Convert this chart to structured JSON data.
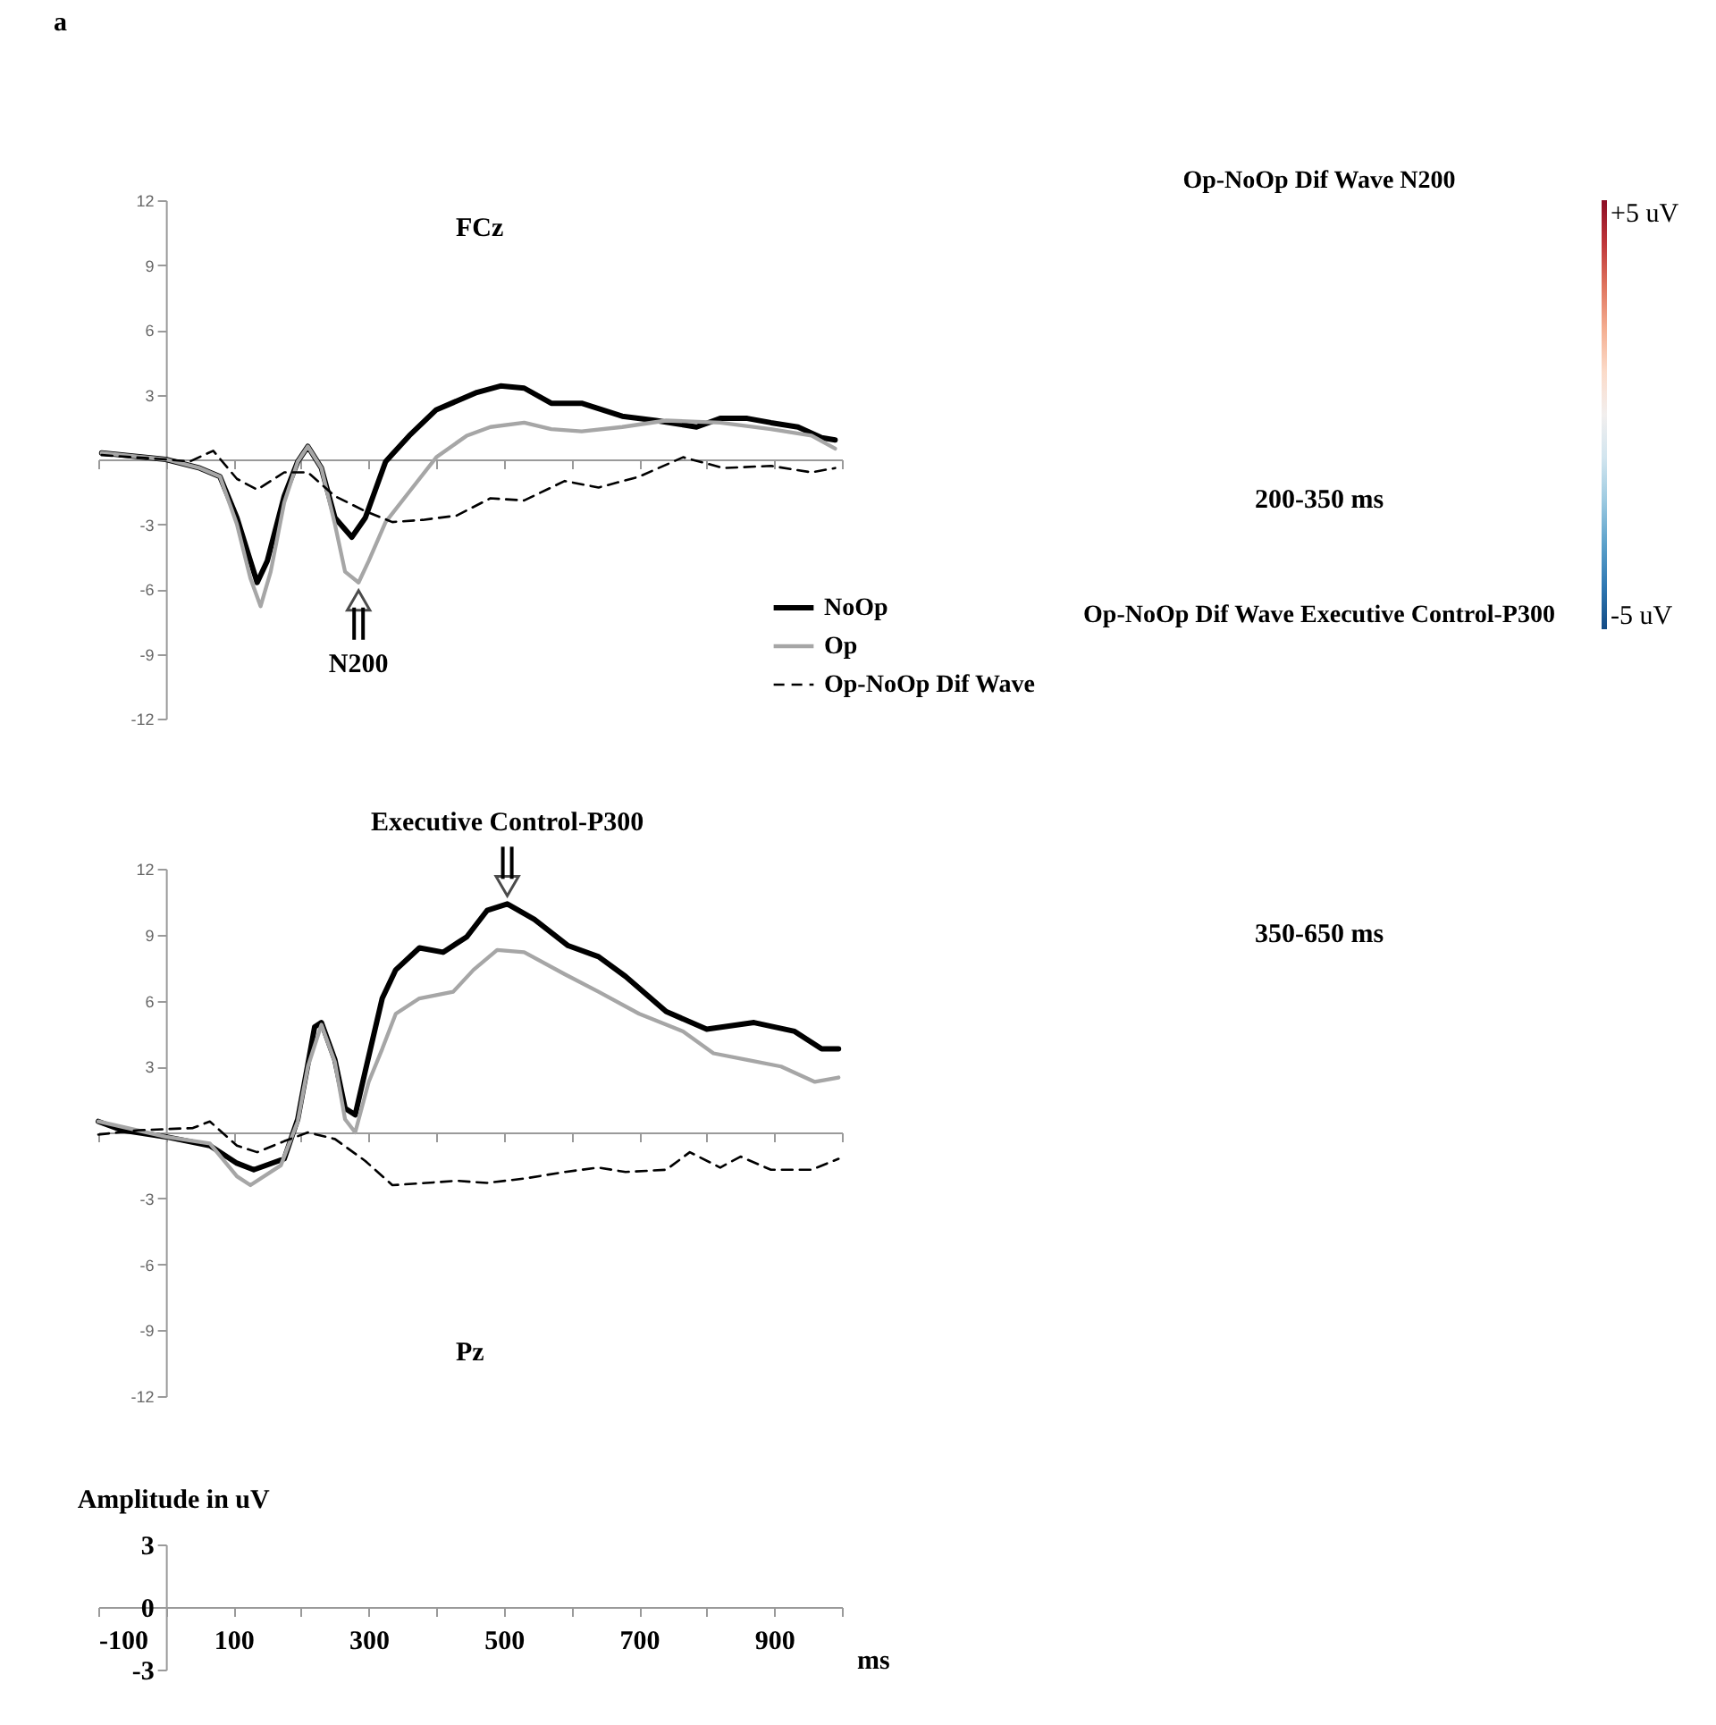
{
  "chart_data": [
    {
      "type": "line",
      "xlim": [
        -100,
        1000
      ],
      "xticks": [
        {
          "value": -100,
          "label": null
        },
        {
          "value": 0,
          "label": null
        },
        {
          "value": 100,
          "label": null
        },
        {
          "value": 200,
          "label": null
        },
        {
          "value": 300,
          "label": null
        },
        {
          "value": 400,
          "label": null
        },
        {
          "value": 500,
          "label": null
        },
        {
          "value": 600,
          "label": null
        },
        {
          "value": 700,
          "label": null
        },
        {
          "value": 800,
          "label": null
        },
        {
          "value": 900,
          "label": null
        },
        {
          "value": 1000,
          "label": null
        }
      ],
      "ylim": [
        -12,
        12
      ],
      "yticks": [
        -12,
        -9,
        -6,
        -3,
        3,
        6,
        9,
        12
      ],
      "tick_labels": "y",
      "legend": "bottom right",
      "grid": false,
      "annotations": [
        "a",
        "FCz",
        {
          "text": "N200",
          "x": 285,
          "y": -5.7
        }
      ],
      "series": [
        {
          "name": "NoOp",
          "color": "#000000",
          "line_style": "solid",
          "x": [
            -95,
            0,
            50,
            80,
            105,
            125,
            135,
            150,
            175,
            195,
            210,
            230,
            250,
            275,
            295,
            325,
            360,
            400,
            460,
            495,
            530,
            570,
            615,
            675,
            725,
            785,
            820,
            860,
            895,
            935,
            970,
            990
          ],
          "values": [
            0.3,
            0,
            -0.4,
            -0.8,
            -2.7,
            -4.7,
            -5.7,
            -4.7,
            -1.7,
            -0.1,
            0.6,
            -0.4,
            -2.7,
            -3.6,
            -2.7,
            -0.1,
            1.1,
            2.3,
            3.1,
            3.4,
            3.3,
            2.6,
            2.6,
            2.0,
            1.8,
            1.5,
            1.9,
            1.9,
            1.7,
            1.5,
            1.0,
            0.9
          ]
        },
        {
          "name": "Op",
          "color": "#a6a6a6",
          "line_style": "solid",
          "x": [
            -95,
            0,
            50,
            80,
            105,
            125,
            140,
            155,
            175,
            195,
            210,
            230,
            250,
            265,
            285,
            300,
            325,
            360,
            400,
            445,
            480,
            530,
            570,
            615,
            675,
            740,
            820,
            895,
            955,
            990
          ],
          "values": [
            0.3,
            0,
            -0.4,
            -0.8,
            -3.0,
            -5.5,
            -6.8,
            -5.2,
            -2.0,
            -0.1,
            0.6,
            -0.4,
            -3.0,
            -5.2,
            -5.7,
            -4.7,
            -2.9,
            -1.5,
            0.1,
            1.1,
            1.5,
            1.7,
            1.4,
            1.3,
            1.5,
            1.8,
            1.7,
            1.4,
            1.1,
            0.5
          ]
        },
        {
          "name": "Op-NoOp Dif Wave",
          "color": "#000000",
          "line_style": "dashed",
          "x": [
            -95,
            0,
            35,
            70,
            105,
            135,
            175,
            210,
            250,
            295,
            335,
            380,
            430,
            480,
            530,
            590,
            640,
            700,
            765,
            825,
            895,
            955,
            990
          ],
          "values": [
            0.2,
            0,
            -0.1,
            0.4,
            -0.9,
            -1.4,
            -0.6,
            -0.6,
            -1.7,
            -2.4,
            -2.9,
            -2.8,
            -2.6,
            -1.8,
            -1.9,
            -1.0,
            -1.3,
            -0.8,
            0.1,
            -0.4,
            -0.3,
            -0.6,
            -0.4
          ]
        }
      ]
    },
    {
      "type": "line",
      "xlim": [
        -100,
        1000
      ],
      "xticks": [
        {
          "value": -100,
          "label": null
        },
        {
          "value": 0,
          "label": null
        },
        {
          "value": 100,
          "label": null
        },
        {
          "value": 200,
          "label": null
        },
        {
          "value": 300,
          "label": null
        },
        {
          "value": 400,
          "label": null
        },
        {
          "value": 500,
          "label": null
        },
        {
          "value": 600,
          "label": null
        },
        {
          "value": 700,
          "label": null
        },
        {
          "value": 800,
          "label": null
        },
        {
          "value": 900,
          "label": null
        },
        {
          "value": 1000,
          "label": null
        }
      ],
      "ylim": [
        -12,
        12
      ],
      "yticks": [
        -12,
        -9,
        -6,
        -3,
        3,
        6,
        9,
        12
      ],
      "tick_labels": "y",
      "grid": false,
      "annotations": [
        "Pz",
        {
          "text": "Executive Control-P300",
          "x": 505,
          "y": 10.4
        }
      ],
      "series": [
        {
          "color": "#000000",
          "line_style": "solid",
          "x": [
            -100,
            -65,
            0,
            65,
            105,
            130,
            175,
            195,
            210,
            220,
            230,
            250,
            265,
            280,
            295,
            320,
            340,
            375,
            410,
            445,
            475,
            505,
            545,
            595,
            640,
            680,
            740,
            800,
            870,
            930,
            970,
            995
          ],
          "values": [
            0.5,
            0.1,
            -0.2,
            -0.6,
            -1.4,
            -1.7,
            -1.2,
            0.6,
            3.1,
            4.8,
            5.0,
            3.3,
            1.1,
            0.8,
            2.8,
            6.1,
            7.4,
            8.4,
            8.2,
            8.9,
            10.1,
            10.4,
            9.7,
            8.5,
            8.0,
            7.1,
            5.5,
            4.7,
            5.0,
            4.6,
            3.8,
            3.8
          ]
        },
        {
          "color": "#a6a6a6",
          "line_style": "solid",
          "x": [
            -100,
            0,
            65,
            105,
            125,
            170,
            195,
            210,
            230,
            250,
            265,
            280,
            300,
            320,
            340,
            375,
            425,
            455,
            490,
            530,
            590,
            640,
            700,
            765,
            810,
            860,
            910,
            960,
            995
          ],
          "values": [
            0.5,
            -0.2,
            -0.5,
            -2.0,
            -2.4,
            -1.5,
            0.5,
            3.0,
            4.9,
            3.2,
            0.6,
            0,
            2.3,
            3.8,
            5.4,
            6.1,
            6.4,
            7.4,
            8.3,
            8.2,
            7.2,
            6.4,
            5.4,
            4.6,
            3.6,
            3.3,
            3.0,
            2.3,
            2.5
          ]
        },
        {
          "color": "#000000",
          "line_style": "dashed",
          "x": [
            -100,
            -40,
            40,
            65,
            105,
            135,
            175,
            210,
            250,
            295,
            335,
            385,
            430,
            475,
            530,
            590,
            640,
            680,
            740,
            775,
            820,
            850,
            895,
            955,
            995
          ],
          "values": [
            -0.1,
            0.1,
            0.2,
            0.5,
            -0.6,
            -0.9,
            -0.4,
            0,
            -0.3,
            -1.3,
            -2.4,
            -2.3,
            -2.2,
            -2.3,
            -2.1,
            -1.8,
            -1.6,
            -1.8,
            -1.7,
            -0.9,
            -1.6,
            -1.1,
            -1.7,
            -1.7,
            -1.2
          ]
        }
      ]
    },
    {
      "type": "line",
      "xlim": [
        -100,
        1000
      ],
      "xticks": [
        -100,
        {
          "value": 0,
          "label": null
        },
        100,
        {
          "value": 200,
          "label": null
        },
        300,
        {
          "value": 400,
          "label": null
        },
        500,
        {
          "value": 600,
          "label": null
        },
        700,
        {
          "value": 800,
          "label": null
        },
        900,
        {
          "value": 1000,
          "label": null
        }
      ],
      "ylim": [
        -3,
        3
      ],
      "yticks": [
        -3,
        0,
        3
      ],
      "xlabel": "ms",
      "ylabel": "Amplitude in uV",
      "grid": false
    },
    {
      "type": "other",
      "title": "Op-NoOp Dif Wave N200",
      "annotations": [
        "200-350 ms"
      ]
    },
    {
      "type": "other",
      "title": "Op-NoOp Dif Wave Executive Control-P300",
      "annotations": [
        "350-650 ms"
      ]
    },
    {
      "type": "other",
      "annotations": [
        "+5 uV",
        "-5 uV"
      ]
    }
  ]
}
